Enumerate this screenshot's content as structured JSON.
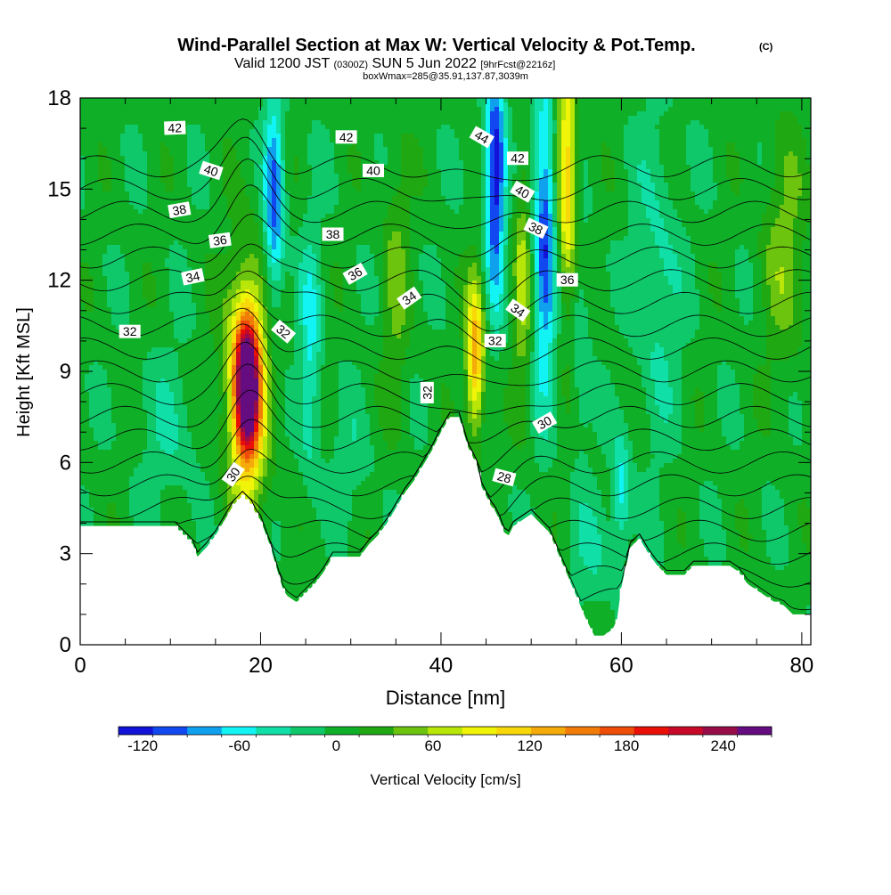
{
  "title": {
    "main": "Wind-Parallel Section at Max W: Vertical Velocity & Pot.Temp.",
    "copyright": "(C)",
    "valid_prefix": "Valid 1200 JST",
    "valid_utc": "(0300Z)",
    "valid_suffix": "SUN 5 Jun 2022",
    "forecast_info": "[9hrFcst@2216z]",
    "box_info": "boxWmax=285@35.91,137.87,3039m"
  },
  "colorbar": {
    "label": "Vertical Velocity [cm/s]",
    "tick_labels": [
      "-120",
      "-60",
      "0",
      "60",
      "120",
      "180",
      "240"
    ],
    "tick_values": [
      -120,
      -60,
      0,
      60,
      120,
      180,
      240
    ],
    "min": -135,
    "max": 270,
    "colors": [
      "#1212d8",
      "#1248f0",
      "#0fa0ee",
      "#12f4f4",
      "#10e0a8",
      "#0ec86a",
      "#0fb028",
      "#20a812",
      "#6cc40e",
      "#b8e608",
      "#f0f408",
      "#f8d808",
      "#f4aa08",
      "#f27c08",
      "#ee4c08",
      "#ea1008",
      "#c80828",
      "#980c48",
      "#640c80"
    ]
  },
  "chart_data": {
    "type": "heatmap",
    "title": "Wind-Parallel Section at Max W: Vertical Velocity & Pot.Temp.",
    "xlabel": "Distance [nm]",
    "ylabel": "Height [Kft MSL]",
    "xlim": [
      0,
      81
    ],
    "ylim": [
      0,
      18
    ],
    "x_ticks": [
      0,
      20,
      40,
      60,
      80
    ],
    "y_ticks": [
      0,
      3,
      6,
      9,
      12,
      15,
      18
    ],
    "grid": false,
    "background_w": 0,
    "w_features": [
      {
        "x": 18.5,
        "y": 8.5,
        "wx": 1.3,
        "wy": 2.2,
        "w": 260
      },
      {
        "x": 18.5,
        "y": 8.5,
        "wx": 2.6,
        "wy": 4.2,
        "w": 110
      },
      {
        "x": 21.5,
        "y": 14.5,
        "wx": 1.1,
        "wy": 3.5,
        "w": -105
      },
      {
        "x": 25.5,
        "y": 9.5,
        "wx": 1.2,
        "wy": 4.0,
        "w": -55
      },
      {
        "x": 35.0,
        "y": 12.0,
        "wx": 1.5,
        "wy": 4.5,
        "w": 40
      },
      {
        "x": 43.8,
        "y": 9.5,
        "wx": 1.0,
        "wy": 2.5,
        "w": 140
      },
      {
        "x": 46.0,
        "y": 15.5,
        "wx": 1.1,
        "wy": 4.0,
        "w": -130
      },
      {
        "x": 49.0,
        "y": 12.0,
        "wx": 1.0,
        "wy": 4.0,
        "w": 60
      },
      {
        "x": 51.5,
        "y": 13.5,
        "wx": 1.2,
        "wy": 5.0,
        "w": -110
      },
      {
        "x": 54.0,
        "y": 15.5,
        "wx": 1.1,
        "wy": 4.0,
        "w": 120
      },
      {
        "x": 55.5,
        "y": 10.0,
        "wx": 1.0,
        "wy": 4.0,
        "w": -30
      },
      {
        "x": 60.0,
        "y": 5.0,
        "wx": 1.0,
        "wy": 2.0,
        "w": -60
      },
      {
        "x": 64.0,
        "y": 12.0,
        "wx": 2.5,
        "wy": 5.0,
        "w": -35
      },
      {
        "x": 78.0,
        "y": 13.0,
        "wx": 2.5,
        "wy": 4.0,
        "w": 45
      },
      {
        "x": 10.0,
        "y": 7.0,
        "wx": 3.5,
        "wy": 2.5,
        "w": -25
      },
      {
        "x": 30.0,
        "y": 6.0,
        "wx": 2.5,
        "wy": 2.0,
        "w": -20
      },
      {
        "x": 57.0,
        "y": 3.0,
        "wx": 2.5,
        "wy": 2.0,
        "w": -25
      }
    ],
    "terrain": {
      "x": [
        0,
        10.5,
        11.5,
        12.5,
        13,
        14,
        15,
        16,
        17,
        18,
        19,
        19.5,
        20,
        21,
        22,
        22.5,
        23,
        24,
        25,
        26,
        27,
        28,
        29,
        31,
        32,
        33,
        34,
        35,
        36,
        37,
        38,
        39,
        40,
        41,
        42,
        42.5,
        43,
        44,
        44.5,
        45,
        45.5,
        46,
        46.5,
        47,
        47.5,
        48,
        48.5,
        49,
        50,
        51,
        52,
        53,
        54,
        55,
        56,
        57,
        58,
        59,
        59.5,
        60,
        61,
        62,
        63,
        64,
        65,
        67,
        68,
        70,
        72,
        73,
        74,
        75,
        76,
        77,
        78,
        79,
        80,
        81
      ],
      "y": [
        3.9,
        3.9,
        3.6,
        3.3,
        2.9,
        3.2,
        3.6,
        4.1,
        4.6,
        4.9,
        4.6,
        4.3,
        4.1,
        3.3,
        2.3,
        1.8,
        1.6,
        1.4,
        1.7,
        2.0,
        2.4,
        2.9,
        2.9,
        2.9,
        3.3,
        3.6,
        4.0,
        4.5,
        5.0,
        5.4,
        5.9,
        6.4,
        7.0,
        7.5,
        7.5,
        7.0,
        6.5,
        5.9,
        5.2,
        4.9,
        4.6,
        4.4,
        4.1,
        3.7,
        3.6,
        3.9,
        4.0,
        4.1,
        4.3,
        4.0,
        3.7,
        3.0,
        2.3,
        1.6,
        0.9,
        0.3,
        0.3,
        0.5,
        0.8,
        1.9,
        3.2,
        3.5,
        3.0,
        2.6,
        2.3,
        2.3,
        2.6,
        2.6,
        2.6,
        2.4,
        2.0,
        1.8,
        1.6,
        1.4,
        1.3,
        1.0,
        1.0,
        1.0
      ]
    },
    "isentropes": {
      "levels": [
        26,
        27,
        28,
        29,
        30,
        31,
        32,
        33,
        34,
        35,
        36,
        37,
        38,
        39,
        40,
        41,
        42,
        43,
        44,
        45
      ],
      "labels": [
        {
          "text": "42",
          "x": 10.5,
          "y": 17.0,
          "angle": -2
        },
        {
          "text": "40",
          "x": 14.5,
          "y": 15.6,
          "angle": 18
        },
        {
          "text": "38",
          "x": 11.0,
          "y": 14.3,
          "angle": -10
        },
        {
          "text": "36",
          "x": 15.5,
          "y": 13.3,
          "angle": -8
        },
        {
          "text": "34",
          "x": 12.5,
          "y": 12.1,
          "angle": -12
        },
        {
          "text": "32",
          "x": 5.5,
          "y": 10.3,
          "angle": 0
        },
        {
          "text": "30",
          "x": 17.0,
          "y": 5.6,
          "angle": -55
        },
        {
          "text": "42",
          "x": 29.5,
          "y": 16.7,
          "angle": 0
        },
        {
          "text": "40",
          "x": 32.5,
          "y": 15.6,
          "angle": 0
        },
        {
          "text": "38",
          "x": 28.0,
          "y": 13.5,
          "angle": 0
        },
        {
          "text": "36",
          "x": 30.5,
          "y": 12.2,
          "angle": -30
        },
        {
          "text": "32",
          "x": 22.5,
          "y": 10.3,
          "angle": 40
        },
        {
          "text": "34",
          "x": 36.5,
          "y": 11.4,
          "angle": -35
        },
        {
          "text": "32",
          "x": 38.5,
          "y": 8.3,
          "angle": -90
        },
        {
          "text": "44",
          "x": 44.5,
          "y": 16.7,
          "angle": 30
        },
        {
          "text": "42",
          "x": 48.5,
          "y": 16.0,
          "angle": 0
        },
        {
          "text": "40",
          "x": 49.0,
          "y": 14.9,
          "angle": 30
        },
        {
          "text": "38",
          "x": 50.5,
          "y": 13.7,
          "angle": 25
        },
        {
          "text": "34",
          "x": 48.5,
          "y": 11.0,
          "angle": 35
        },
        {
          "text": "32",
          "x": 46.0,
          "y": 10.0,
          "angle": 0
        },
        {
          "text": "36",
          "x": 54.0,
          "y": 12.0,
          "angle": 0
        },
        {
          "text": "30",
          "x": 51.5,
          "y": 7.3,
          "angle": -30
        },
        {
          "text": "28",
          "x": 47.0,
          "y": 5.5,
          "angle": 15
        }
      ]
    }
  }
}
